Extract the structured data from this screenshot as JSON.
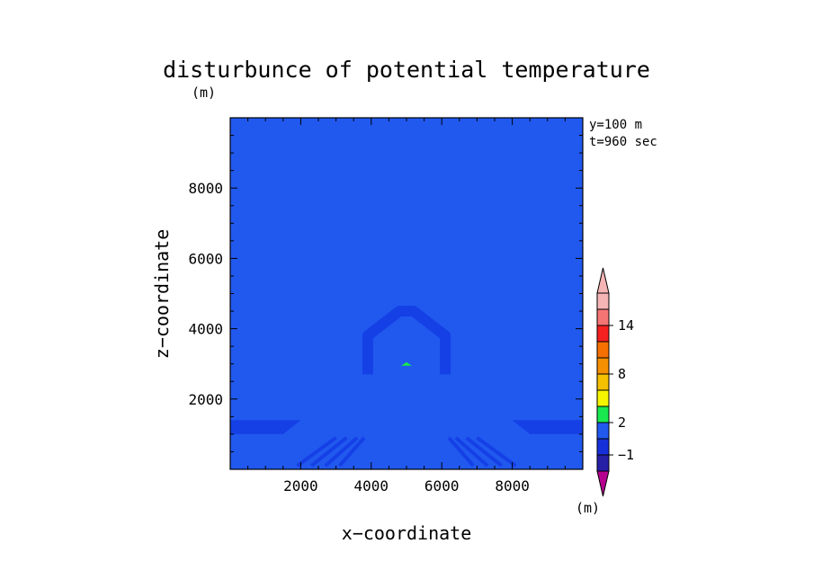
{
  "chart_data": {
    "type": "heatmap",
    "title": "disturbunce of potential temperature",
    "unit_label": "(m)",
    "xlabel": "x−coordinate",
    "ylabel": "z−coordinate",
    "xlim": [
      0,
      10000
    ],
    "ylim": [
      0,
      10000
    ],
    "x_ticks": [
      2000,
      4000,
      6000,
      8000
    ],
    "x_tick_labels": [
      "2000",
      "4000",
      "6000",
      "8000"
    ],
    "y_ticks": [
      2000,
      4000,
      6000,
      8000
    ],
    "y_tick_labels": [
      "2000",
      "4000",
      "6000",
      "8000"
    ],
    "annotations": [
      "y=100 m",
      "t=960 sec"
    ],
    "background_color": "#2159ef",
    "features": [
      {
        "name": "arch",
        "color": "#1540e6",
        "points": [
          [
            3900,
            2700
          ],
          [
            3900,
            3800
          ],
          [
            4800,
            4500
          ],
          [
            5200,
            4500
          ],
          [
            6100,
            3800
          ],
          [
            6100,
            2700
          ]
        ]
      },
      {
        "name": "warm-core",
        "color": "#19e84f",
        "points": [
          [
            4850,
            2950
          ],
          [
            5000,
            3050
          ],
          [
            5150,
            2950
          ]
        ]
      },
      {
        "name": "left-layer",
        "color": "#1540e6",
        "points": [
          [
            0,
            1400
          ],
          [
            2000,
            1400
          ],
          [
            1500,
            1000
          ],
          [
            0,
            1000
          ]
        ]
      },
      {
        "name": "right-layer",
        "color": "#1540e6",
        "points": [
          [
            8000,
            1400
          ],
          [
            10000,
            1400
          ],
          [
            10000,
            1000
          ],
          [
            8500,
            1000
          ]
        ]
      }
    ],
    "colorbar": {
      "label": "(m)",
      "tick_labels": [
        "14",
        "8",
        "2",
        "−1"
      ],
      "colors": [
        "#b5008f",
        "#2520a6",
        "#1530d8",
        "#2159ef",
        "#19e84f",
        "#f5f500",
        "#f5c000",
        "#f59000",
        "#f57000",
        "#f52020",
        "#f57575",
        "#f5b5b5"
      ]
    }
  }
}
